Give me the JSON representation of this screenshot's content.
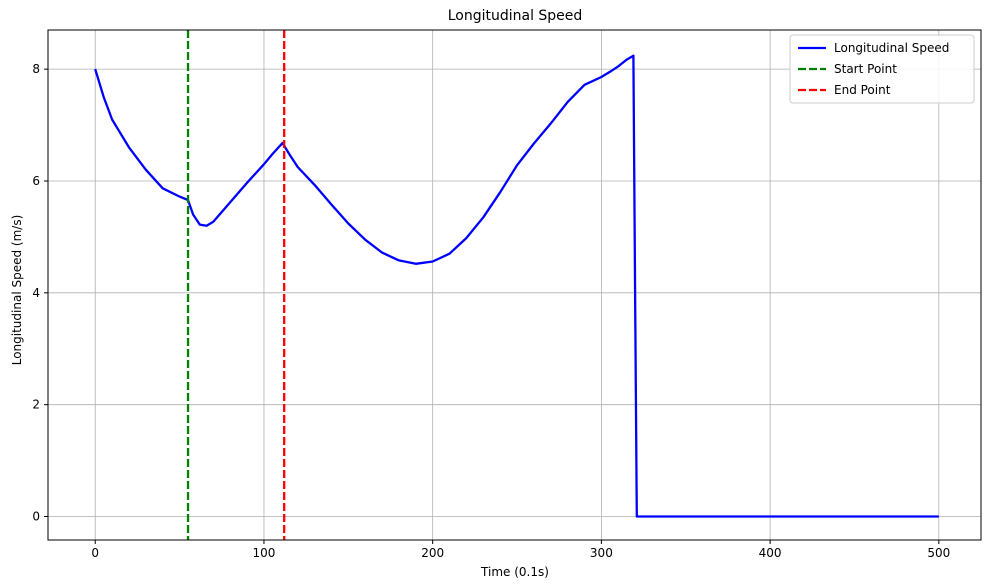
{
  "chart_data": {
    "type": "line",
    "title": "Longitudinal Speed",
    "xlabel": "Time (0.1s)",
    "ylabel": "Longitudinal Speed (m/s)",
    "xlim": [
      -28,
      525
    ],
    "ylim": [
      -0.42,
      8.7
    ],
    "xticks": [
      0,
      100,
      200,
      300,
      400,
      500
    ],
    "yticks": [
      0,
      2,
      4,
      6,
      8
    ],
    "grid": true,
    "legend_position": "top-right",
    "series": [
      {
        "name": "Longitudinal Speed",
        "color": "#0000ff",
        "style": "solid",
        "x": [
          0,
          5,
          10,
          20,
          30,
          40,
          50,
          55,
          58,
          62,
          66,
          70,
          80,
          90,
          100,
          105,
          111,
          115,
          120,
          130,
          140,
          150,
          160,
          170,
          180,
          190,
          200,
          210,
          220,
          230,
          240,
          250,
          260,
          270,
          280,
          290,
          300,
          305,
          310,
          315,
          319,
          320,
          321,
          330,
          400,
          500
        ],
        "y": [
          8.0,
          7.5,
          7.1,
          6.6,
          6.2,
          5.87,
          5.72,
          5.66,
          5.4,
          5.22,
          5.2,
          5.27,
          5.62,
          5.97,
          6.3,
          6.48,
          6.68,
          6.48,
          6.25,
          5.93,
          5.58,
          5.24,
          4.95,
          4.72,
          4.58,
          4.52,
          4.56,
          4.7,
          4.98,
          5.35,
          5.8,
          6.28,
          6.67,
          7.03,
          7.41,
          7.72,
          7.86,
          7.95,
          8.05,
          8.17,
          8.24,
          4.0,
          0.0,
          0.0,
          0.0,
          0.0
        ]
      },
      {
        "name": "Start Point",
        "color": "#008000",
        "style": "dashed",
        "vline_x": 55
      },
      {
        "name": "End Point",
        "color": "#ff0000",
        "style": "dashed",
        "vline_x": 112
      }
    ]
  }
}
